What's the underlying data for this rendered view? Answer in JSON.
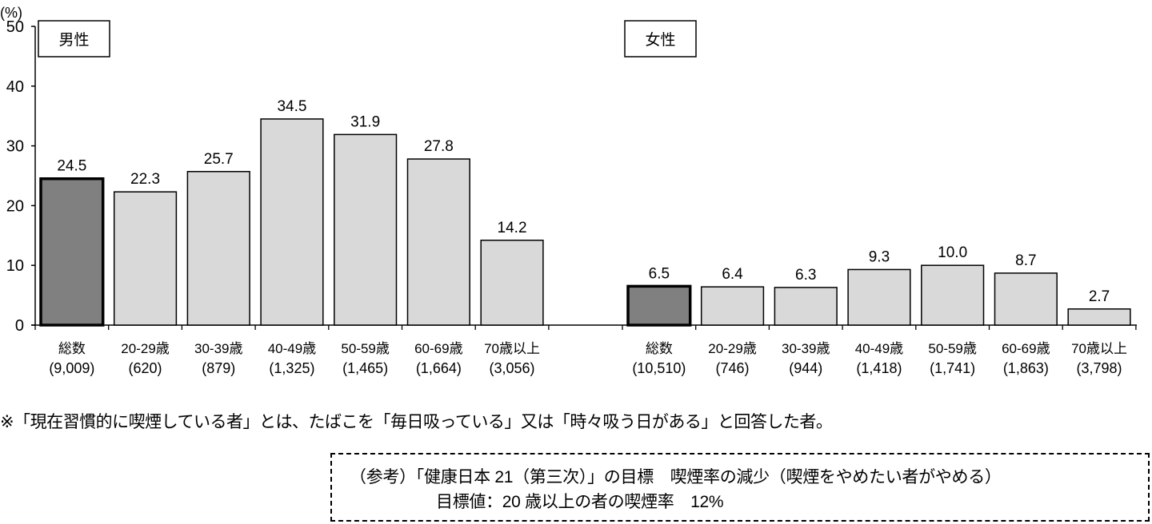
{
  "chart_data": {
    "type": "bar",
    "title": "",
    "ylabel": "(%)",
    "xlabel": "",
    "ylim": [
      0,
      50
    ],
    "yticks": [
      0,
      10,
      20,
      30,
      40,
      50
    ],
    "grid": false,
    "groups": [
      {
        "name": "男性",
        "categories": [
          "総数",
          "20-29歳",
          "30-39歳",
          "40-49歳",
          "50-59歳",
          "60-69歳",
          "70歳以上"
        ],
        "counts": [
          "(9,009)",
          "(620)",
          "(879)",
          "(1,325)",
          "(1,465)",
          "(1,664)",
          "(3,056)"
        ],
        "values": [
          24.5,
          22.3,
          25.7,
          34.5,
          31.9,
          27.8,
          14.2
        ],
        "labels": [
          "24.5",
          "22.3",
          "25.7",
          "34.5",
          "31.9",
          "27.8",
          "14.2"
        ]
      },
      {
        "name": "女性",
        "categories": [
          "総数",
          "20-29歳",
          "30-39歳",
          "40-49歳",
          "50-59歳",
          "60-69歳",
          "70歳以上"
        ],
        "counts": [
          "(10,510)",
          "(746)",
          "(944)",
          "(1,418)",
          "(1,741)",
          "(1,863)",
          "(3,798)"
        ],
        "values": [
          6.5,
          6.4,
          6.3,
          9.3,
          10.0,
          8.7,
          2.7
        ],
        "labels": [
          "6.5",
          "6.4",
          "6.3",
          "9.3",
          "10.0",
          "8.7",
          "2.7"
        ]
      }
    ],
    "colors": {
      "total_fill": "#808080",
      "age_fill": "#d9d9d9",
      "stroke": "#000000"
    }
  },
  "footnote": "※「現在習慣的に喫煙している者」とは、たばこを「毎日吸っている」又は「時々吸う日がある」と回答した者。",
  "reference": {
    "line1": "（参考）「健康日本 21（第三次）」の目標　喫煙率の減少（喫煙をやめたい者がやめる）",
    "line2": "目標値：20 歳以上の者の喫煙率　12%"
  }
}
